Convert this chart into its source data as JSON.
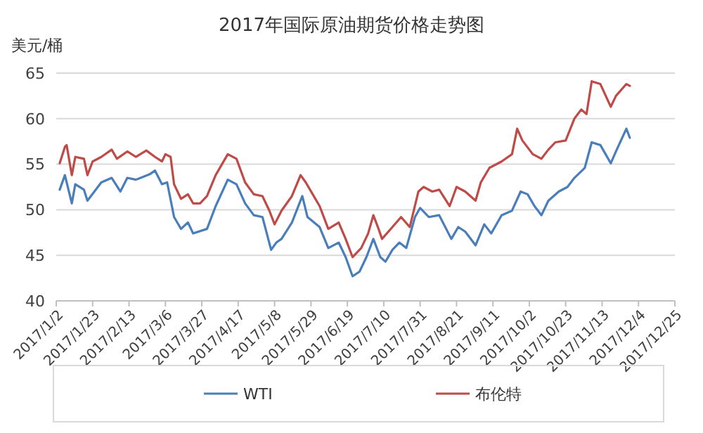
{
  "chart_data": {
    "type": "line",
    "title": "2017年国际原油期货价格走势图",
    "ylabel": "美元/桶",
    "xlim": [
      "2017-01-02",
      "2017-12-25"
    ],
    "xticks": [
      {
        "value": "2017-01-02",
        "label": "2017/1/2"
      },
      {
        "value": "2017-01-23",
        "label": "2017/1/23"
      },
      {
        "value": "2017-02-13",
        "label": "2017/2/13"
      },
      {
        "value": "2017-03-06",
        "label": "2017/3/6"
      },
      {
        "value": "2017-03-27",
        "label": "2017/3/27"
      },
      {
        "value": "2017-04-17",
        "label": "2017/4/17"
      },
      {
        "value": "2017-05-08",
        "label": "2017/5/8"
      },
      {
        "value": "2017-05-29",
        "label": "2017/5/29"
      },
      {
        "value": "2017-06-19",
        "label": "2017/6/19"
      },
      {
        "value": "2017-07-10",
        "label": "2017/7/10"
      },
      {
        "value": "2017-07-31",
        "label": "2017/7/31"
      },
      {
        "value": "2017-08-21",
        "label": "2017/8/21"
      },
      {
        "value": "2017-09-11",
        "label": "2017/9/11"
      },
      {
        "value": "2017-10-02",
        "label": "2017/10/2"
      },
      {
        "value": "2017-10-23",
        "label": "2017/10/23"
      },
      {
        "value": "2017-11-13",
        "label": "2017/11/13"
      },
      {
        "value": "2017-12-04",
        "label": "2017/12/4"
      },
      {
        "value": "2017-12-25",
        "label": "2017/12/25"
      }
    ],
    "ylim": [
      40,
      65
    ],
    "yticks": [
      40,
      45,
      50,
      55,
      60,
      65
    ],
    "grid": "y",
    "legend": "bottom",
    "marker": "none",
    "line_style": "solid",
    "series": [
      {
        "name": "WTI",
        "color": "#4a7ebb",
        "x": [
          "2017-01-04",
          "2017-01-07",
          "2017-01-11",
          "2017-01-13",
          "2017-01-18",
          "2017-01-20",
          "2017-01-28",
          "2017-02-03",
          "2017-02-08",
          "2017-02-12",
          "2017-02-17",
          "2017-02-25",
          "2017-02-28",
          "2017-03-04",
          "2017-03-07",
          "2017-03-11",
          "2017-03-15",
          "2017-03-19",
          "2017-03-22",
          "2017-03-30",
          "2017-04-04",
          "2017-04-11",
          "2017-04-16",
          "2017-04-21",
          "2017-04-26",
          "2017-05-01",
          "2017-05-06",
          "2017-05-09",
          "2017-05-12",
          "2017-05-18",
          "2017-05-24",
          "2017-05-27",
          "2017-06-03",
          "2017-06-08",
          "2017-06-14",
          "2017-06-18",
          "2017-06-22",
          "2017-06-26",
          "2017-06-30",
          "2017-07-04",
          "2017-07-08",
          "2017-07-11",
          "2017-07-15",
          "2017-07-19",
          "2017-07-23",
          "2017-07-28",
          "2017-07-31",
          "2017-08-05",
          "2017-08-11",
          "2017-08-18",
          "2017-08-22",
          "2017-08-26",
          "2017-09-01",
          "2017-09-06",
          "2017-09-10",
          "2017-09-16",
          "2017-09-22",
          "2017-09-27",
          "2017-10-01",
          "2017-10-05",
          "2017-10-09",
          "2017-10-13",
          "2017-10-19",
          "2017-10-24",
          "2017-10-28",
          "2017-11-03",
          "2017-11-07",
          "2017-11-12",
          "2017-11-18",
          "2017-11-21",
          "2017-11-27",
          "2017-11-29"
        ],
        "values": [
          52.2,
          53.8,
          50.7,
          52.8,
          52.2,
          51.0,
          53.0,
          53.5,
          52.0,
          53.5,
          53.3,
          53.9,
          54.3,
          52.8,
          53.0,
          49.2,
          47.9,
          48.6,
          47.4,
          47.9,
          50.4,
          53.3,
          52.8,
          50.7,
          49.4,
          49.2,
          45.6,
          46.4,
          46.8,
          48.6,
          51.5,
          49.2,
          48.1,
          45.8,
          46.4,
          44.8,
          42.7,
          43.2,
          44.8,
          46.8,
          44.8,
          44.3,
          45.6,
          46.4,
          45.8,
          49.2,
          50.2,
          49.2,
          49.4,
          46.8,
          48.1,
          47.6,
          46.1,
          48.4,
          47.4,
          49.4,
          49.9,
          52.0,
          51.7,
          50.4,
          49.4,
          51.0,
          52.0,
          52.5,
          53.5,
          54.6,
          57.4,
          57.1,
          55.1,
          56.4,
          58.9,
          57.9
        ]
      },
      {
        "name": "布伦特",
        "color": "#be4b48",
        "x": [
          "2017-01-04",
          "2017-01-07",
          "2017-01-08",
          "2017-01-11",
          "2017-01-13",
          "2017-01-18",
          "2017-01-20",
          "2017-01-23",
          "2017-01-28",
          "2017-02-03",
          "2017-02-06",
          "2017-02-12",
          "2017-02-17",
          "2017-02-23",
          "2017-02-28",
          "2017-03-04",
          "2017-03-06",
          "2017-03-09",
          "2017-03-11",
          "2017-03-15",
          "2017-03-19",
          "2017-03-22",
          "2017-03-26",
          "2017-03-30",
          "2017-04-04",
          "2017-04-11",
          "2017-04-16",
          "2017-04-21",
          "2017-04-26",
          "2017-05-01",
          "2017-05-05",
          "2017-05-08",
          "2017-05-12",
          "2017-05-18",
          "2017-05-23",
          "2017-05-26",
          "2017-05-30",
          "2017-06-03",
          "2017-06-08",
          "2017-06-14",
          "2017-06-18",
          "2017-06-22",
          "2017-06-27",
          "2017-07-01",
          "2017-07-04",
          "2017-07-07",
          "2017-07-09",
          "2017-07-15",
          "2017-07-20",
          "2017-07-25",
          "2017-07-30",
          "2017-08-02",
          "2017-08-07",
          "2017-08-11",
          "2017-08-17",
          "2017-08-21",
          "2017-08-26",
          "2017-09-01",
          "2017-09-04",
          "2017-09-09",
          "2017-09-16",
          "2017-09-22",
          "2017-09-25",
          "2017-09-28",
          "2017-10-04",
          "2017-10-09",
          "2017-10-13",
          "2017-10-17",
          "2017-10-23",
          "2017-10-28",
          "2017-11-01",
          "2017-11-04",
          "2017-11-07",
          "2017-11-12",
          "2017-11-18",
          "2017-11-21",
          "2017-11-27",
          "2017-11-29"
        ],
        "values": [
          55.1,
          56.9,
          57.1,
          53.8,
          55.8,
          55.6,
          53.8,
          55.3,
          55.8,
          56.6,
          55.6,
          56.4,
          55.8,
          56.5,
          55.8,
          55.3,
          56.1,
          55.8,
          52.8,
          51.2,
          51.7,
          50.7,
          50.7,
          51.5,
          53.8,
          56.1,
          55.6,
          53.0,
          51.7,
          51.5,
          49.9,
          48.4,
          49.9,
          51.5,
          53.8,
          53.0,
          51.7,
          50.4,
          47.9,
          48.6,
          46.8,
          44.8,
          45.8,
          47.4,
          49.4,
          47.9,
          46.8,
          48.1,
          49.2,
          48.1,
          52.0,
          52.5,
          52.0,
          52.2,
          50.4,
          52.5,
          52.0,
          51.0,
          53.0,
          54.6,
          55.3,
          56.1,
          58.9,
          57.6,
          56.1,
          55.6,
          56.6,
          57.4,
          57.6,
          60.0,
          61.0,
          60.5,
          64.1,
          63.8,
          61.3,
          62.5,
          63.8,
          63.6
        ]
      }
    ]
  }
}
